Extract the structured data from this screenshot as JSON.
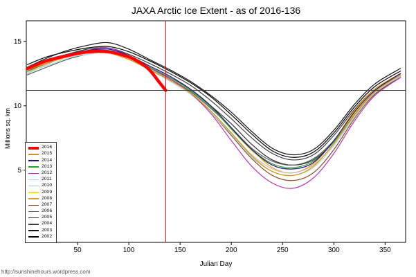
{
  "page": {
    "footer": "http://sunshinehours.wordpress.com"
  },
  "chart_data": {
    "type": "line",
    "title": "JAXA Arctic Ice Extent - as of 2016-136",
    "xlabel": "Julian Day",
    "ylabel": "Millions sq. km",
    "xlim": [
      0,
      370
    ],
    "ylim": [
      -0.6,
      16.6
    ],
    "xticks": [
      50,
      100,
      150,
      200,
      250,
      300,
      350
    ],
    "yticks": [
      5,
      10,
      15
    ],
    "grid": false,
    "legend_position": "left-middle",
    "reference_lines": {
      "vertical": {
        "x": 136,
        "color": "#ff0000"
      },
      "horizontal": {
        "y": 11.2,
        "color": "#3a3a3a"
      }
    },
    "x": [
      1,
      20,
      40,
      60,
      80,
      100,
      120,
      140,
      160,
      180,
      200,
      220,
      240,
      260,
      280,
      300,
      320,
      340,
      365
    ],
    "series": [
      {
        "name": "2016",
        "color": "#ff0000",
        "width": 4.5,
        "days": [
          1,
          20,
          40,
          60,
          80,
          100,
          110,
          120,
          130,
          136
        ],
        "values": [
          12.9,
          13.5,
          13.9,
          14.2,
          14.2,
          13.8,
          13.4,
          12.8,
          11.8,
          11.2
        ]
      },
      {
        "name": "2015",
        "color": "#d99000",
        "width": 1.2,
        "values": [
          12.8,
          13.3,
          13.8,
          14.1,
          14.1,
          13.6,
          12.8,
          12.0,
          11.0,
          9.6,
          7.9,
          6.1,
          4.9,
          4.6,
          5.3,
          7.1,
          9.3,
          11.1,
          12.4
        ]
      },
      {
        "name": "2014",
        "color": "#1414a0",
        "width": 1.2,
        "values": [
          12.9,
          13.5,
          14.0,
          14.3,
          14.4,
          13.9,
          13.1,
          12.3,
          11.3,
          10.0,
          8.3,
          6.6,
          5.4,
          5.1,
          5.6,
          7.3,
          9.5,
          11.2,
          12.5
        ]
      },
      {
        "name": "2013",
        "color": "#2e9e2e",
        "width": 1.2,
        "values": [
          12.7,
          13.3,
          13.9,
          14.2,
          14.3,
          13.8,
          13.0,
          12.2,
          11.2,
          9.9,
          8.2,
          6.6,
          5.5,
          5.2,
          5.7,
          7.2,
          9.3,
          11.1,
          12.4
        ]
      },
      {
        "name": "2012",
        "color": "#bb33bb",
        "width": 1.2,
        "values": [
          12.7,
          13.3,
          13.9,
          14.3,
          14.5,
          13.9,
          13.0,
          12.1,
          11.0,
          9.4,
          7.3,
          5.3,
          4.0,
          3.6,
          4.4,
          6.3,
          8.8,
          10.8,
          12.2
        ]
      },
      {
        "name": "2011",
        "color": "#a8dce8",
        "width": 1.2,
        "values": [
          12.6,
          13.1,
          13.7,
          14.0,
          14.1,
          13.6,
          12.8,
          11.9,
          10.9,
          9.5,
          7.8,
          6.0,
          4.9,
          4.6,
          5.2,
          6.9,
          9.1,
          11.0,
          12.3
        ]
      },
      {
        "name": "2010",
        "color": "#bebebe",
        "width": 1.2,
        "values": [
          12.5,
          13.2,
          13.9,
          14.3,
          14.4,
          13.8,
          12.9,
          12.0,
          11.0,
          9.6,
          7.9,
          6.2,
          5.1,
          4.8,
          5.4,
          7.0,
          9.2,
          11.0,
          12.3
        ]
      },
      {
        "name": "2009",
        "color": "#ffd92e",
        "width": 1.2,
        "values": [
          12.8,
          13.4,
          13.9,
          14.2,
          14.3,
          13.8,
          13.0,
          12.2,
          11.2,
          9.9,
          8.2,
          6.5,
          5.4,
          5.1,
          5.6,
          7.3,
          9.4,
          11.2,
          12.4
        ]
      },
      {
        "name": "2008",
        "color": "#ff9900",
        "width": 1.2,
        "values": [
          12.6,
          13.3,
          13.9,
          14.3,
          14.4,
          13.9,
          13.1,
          12.3,
          11.3,
          10.0,
          8.3,
          6.6,
          5.2,
          4.8,
          5.5,
          7.3,
          9.6,
          11.3,
          12.5
        ]
      },
      {
        "name": "2007",
        "color": "#8b4a1f",
        "width": 1.2,
        "values": [
          12.8,
          13.3,
          13.8,
          14.1,
          14.2,
          13.7,
          12.9,
          12.0,
          11.0,
          9.5,
          7.7,
          5.9,
          4.6,
          4.2,
          4.8,
          6.6,
          9.0,
          10.9,
          12.2
        ]
      },
      {
        "name": "2006",
        "color": "#5a5a5a",
        "width": 1.2,
        "values": [
          12.4,
          13.0,
          13.6,
          14.0,
          14.1,
          13.6,
          12.9,
          12.1,
          11.1,
          9.8,
          8.3,
          6.7,
          5.7,
          5.4,
          5.9,
          7.3,
          9.3,
          11.0,
          12.2
        ]
      },
      {
        "name": "2005",
        "color": "#2b2b2b",
        "width": 1.2,
        "values": [
          12.7,
          13.3,
          13.8,
          14.2,
          14.3,
          13.8,
          13.0,
          12.2,
          11.3,
          10.0,
          8.6,
          7.0,
          5.8,
          5.4,
          5.8,
          7.2,
          9.2,
          11.0,
          12.3
        ]
      },
      {
        "name": "2004",
        "color": "#3c3c3c",
        "width": 1.2,
        "values": [
          12.9,
          13.5,
          14.0,
          14.4,
          14.5,
          14.0,
          13.3,
          12.5,
          11.6,
          10.4,
          9.0,
          7.5,
          6.3,
          5.8,
          6.2,
          7.7,
          9.7,
          11.3,
          12.5
        ]
      },
      {
        "name": "2003",
        "color": "#141414",
        "width": 1.2,
        "values": [
          13.0,
          13.7,
          14.3,
          14.7,
          14.9,
          14.4,
          13.6,
          12.8,
          11.9,
          10.8,
          9.5,
          8.0,
          6.7,
          6.2,
          6.6,
          8.1,
          10.1,
          11.7,
          12.9
        ]
      },
      {
        "name": "2002",
        "color": "#000000",
        "width": 1.2,
        "values": [
          13.2,
          13.8,
          14.2,
          14.5,
          14.6,
          14.2,
          13.5,
          12.7,
          11.8,
          10.7,
          9.3,
          7.8,
          6.5,
          6.0,
          6.4,
          7.9,
          9.9,
          11.5,
          12.7
        ]
      }
    ]
  }
}
